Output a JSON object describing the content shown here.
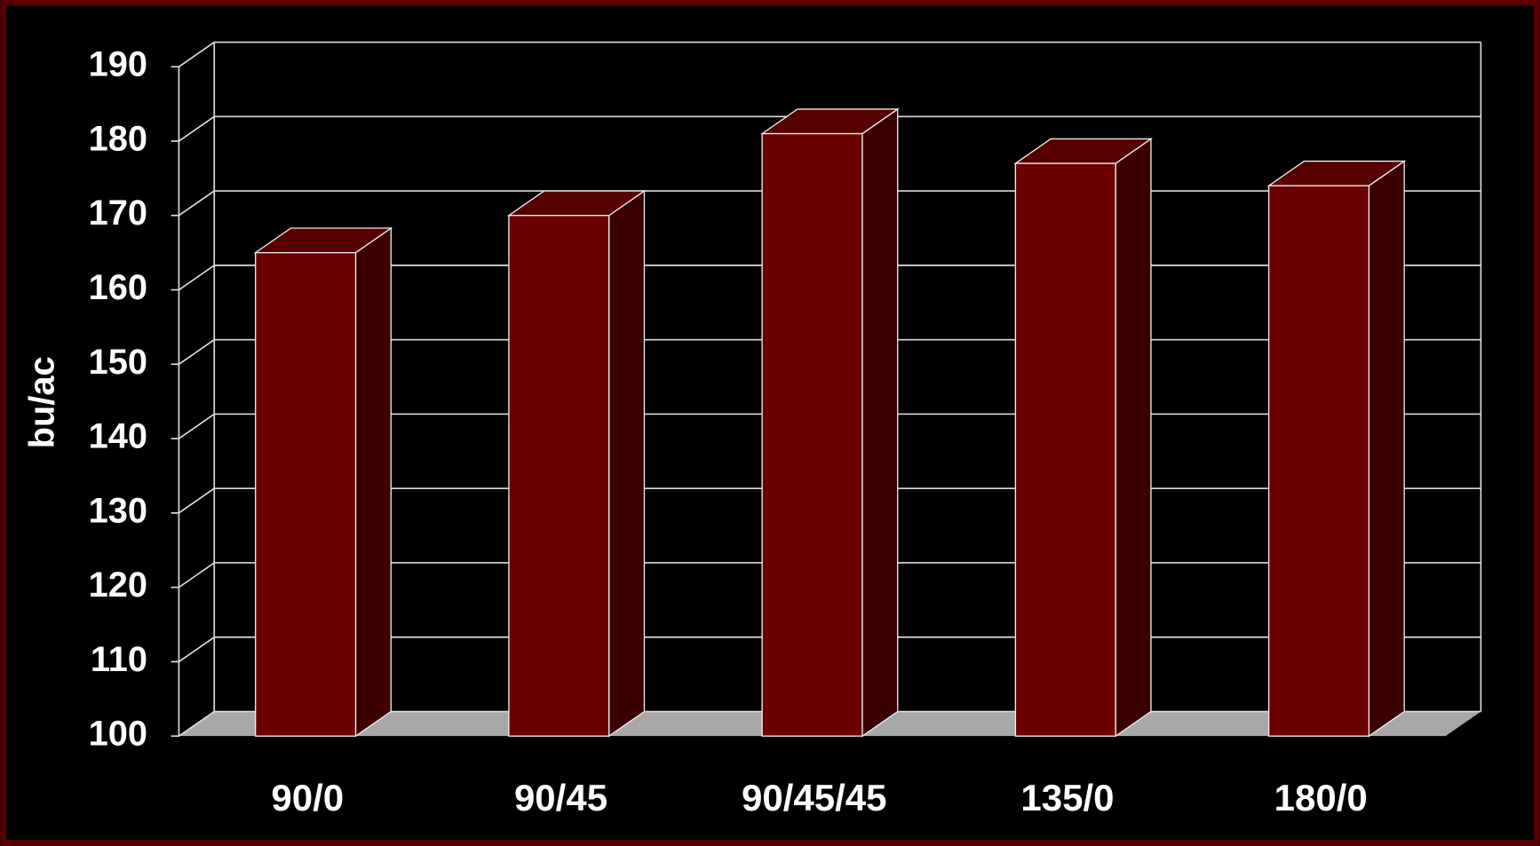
{
  "chart_data": {
    "type": "bar",
    "y_label": "bu/ac",
    "categories": [
      "90/0",
      "90/45",
      "90/45/45",
      "135/0",
      "180/0"
    ],
    "values": [
      165,
      170,
      181,
      177,
      174
    ],
    "color": "#6b0000",
    "ylim": [
      100,
      190
    ],
    "yticks": [
      100,
      110,
      120,
      130,
      140,
      150,
      160,
      170,
      180,
      190
    ],
    "grid": true
  }
}
